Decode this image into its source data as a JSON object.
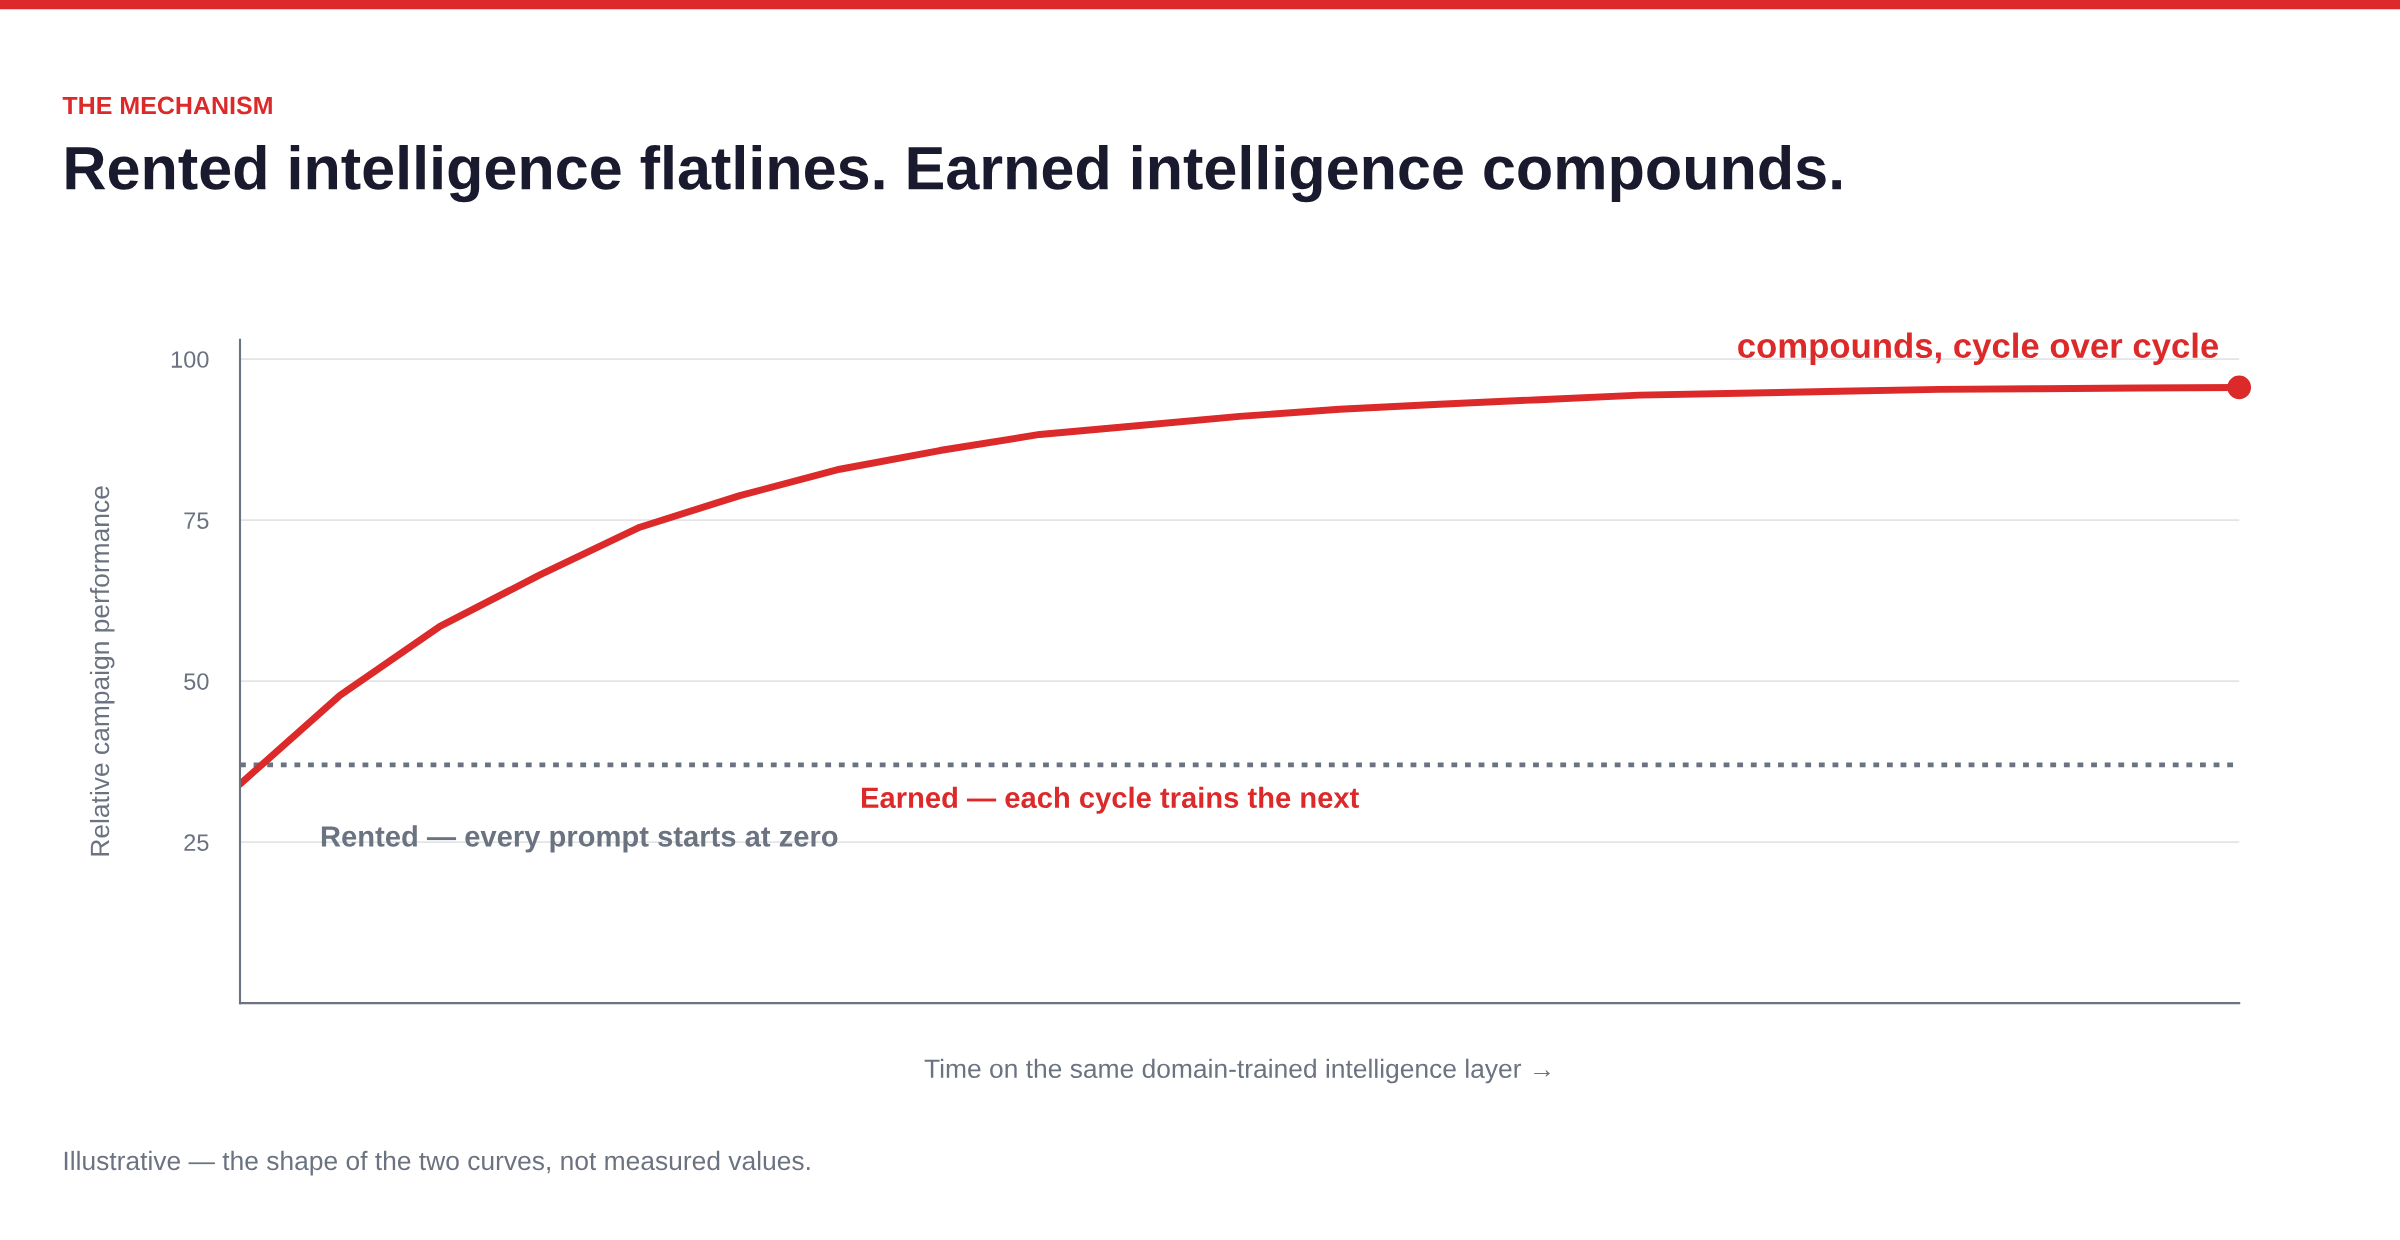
{
  "chart_data": {
    "type": "line",
    "subtitle": "THE MECHANISM",
    "title": "Rented intelligence flatlines. Earned intelligence compounds.",
    "xlabel": "Time on the same domain-trained intelligence layer →",
    "ylabel": "Relative campaign performance",
    "categories": [
      null,
      null,
      null,
      null,
      null,
      null,
      null,
      null,
      null,
      null,
      null,
      null,
      null,
      null,
      null,
      null,
      null,
      null,
      null,
      null,
      null
    ],
    "series": [
      {
        "name": "Rented — every prompt starts at zero",
        "color": "#6b7280",
        "line_style": "dotted",
        "values": [
          37,
          37,
          37,
          37,
          37,
          37,
          37,
          37,
          37,
          37,
          37,
          37,
          37,
          37,
          37,
          37,
          37,
          37,
          37,
          37,
          37
        ]
      },
      {
        "name": "Earned — each cycle trains the next",
        "color": "#dc2a2a",
        "line_style": "solid",
        "values": [
          34.0,
          47.8,
          58.5,
          66.5,
          73.9,
          78.8,
          82.9,
          85.8,
          88.3,
          89.7,
          91.1,
          92.2,
          93.0,
          93.7,
          94.4,
          94.7,
          95.0,
          95.3,
          95.4,
          95.5,
          95.6
        ]
      }
    ],
    "ylim": [
      0,
      103
    ],
    "yticks": [
      25,
      50,
      75,
      100
    ],
    "grid": "y",
    "tick_labels": "y",
    "annotations": [
      {
        "text": "compounds, cycle over cycle",
        "y": 95.6
      },
      "Illustrative — the shape of the two curves, not measured values."
    ]
  }
}
